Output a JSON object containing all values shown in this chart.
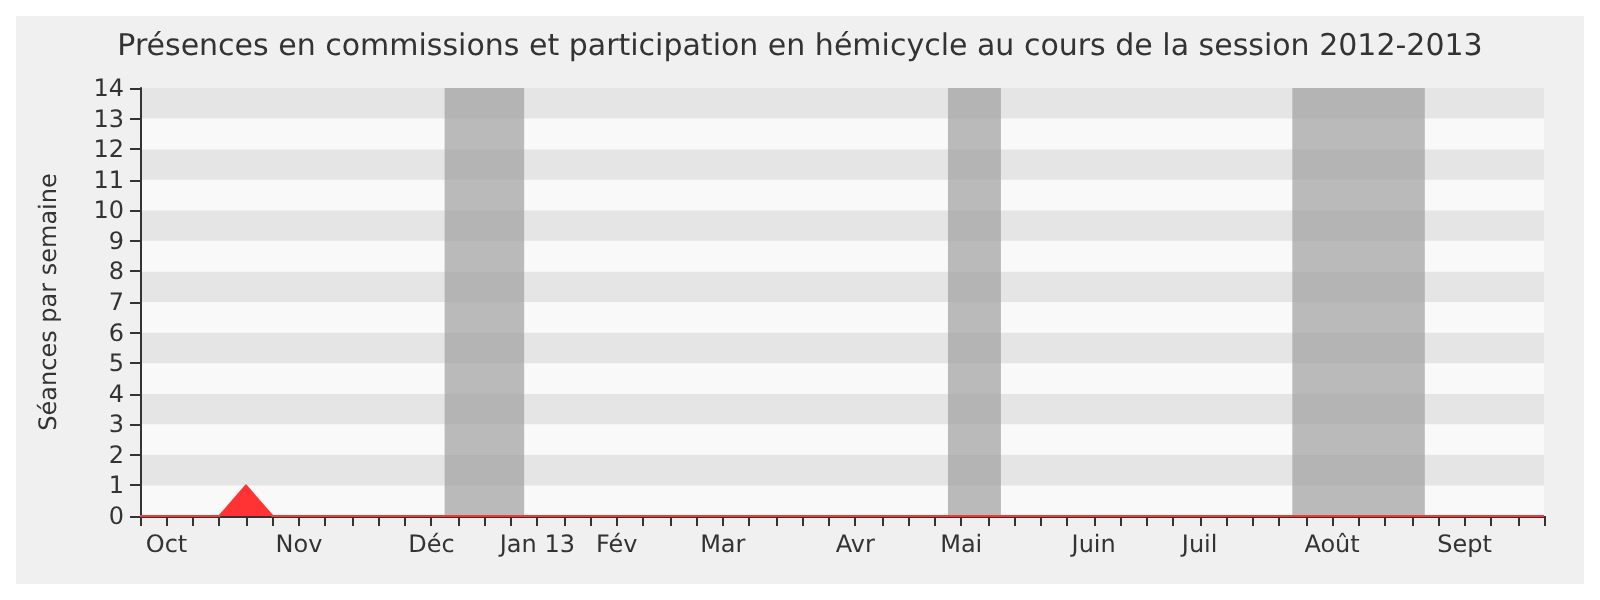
{
  "chart_data": {
    "type": "area",
    "title": "Présences en commissions et participation en hémicycle au cours de la session 2012-2013",
    "ylabel": "Séances par semaine",
    "categories": [
      null,
      "Oct",
      null,
      null,
      null,
      null,
      "Nov",
      null,
      null,
      null,
      null,
      "Déc",
      null,
      null,
      null,
      "Jan 13",
      null,
      null,
      "Fév",
      null,
      null,
      null,
      "Mar",
      null,
      null,
      null,
      null,
      "Avr",
      null,
      null,
      null,
      "Mai",
      null,
      null,
      null,
      null,
      "Juin",
      null,
      null,
      null,
      "Juil",
      null,
      null,
      null,
      null,
      "Août",
      null,
      null,
      null,
      null,
      "Sept",
      null,
      null,
      null
    ],
    "series": [
      {
        "color": "#ff3333",
        "values": [
          0,
          0,
          0,
          0,
          1,
          0,
          0,
          0,
          0,
          0,
          0,
          0,
          0,
          0,
          0,
          0,
          0,
          0,
          0,
          0,
          0,
          0,
          0,
          0,
          0,
          0,
          0,
          0,
          0,
          0,
          0,
          0,
          0,
          0,
          0,
          0,
          0,
          0,
          0,
          0,
          0,
          0,
          0,
          0,
          0,
          0,
          0,
          0,
          0,
          0,
          0,
          0,
          0,
          0
        ]
      }
    ],
    "ylim": [
      0,
      14
    ],
    "yticks": [
      0,
      1,
      2,
      3,
      4,
      5,
      6,
      7,
      8,
      9,
      10,
      11,
      12,
      13,
      14
    ],
    "marker": "none"
  }
}
